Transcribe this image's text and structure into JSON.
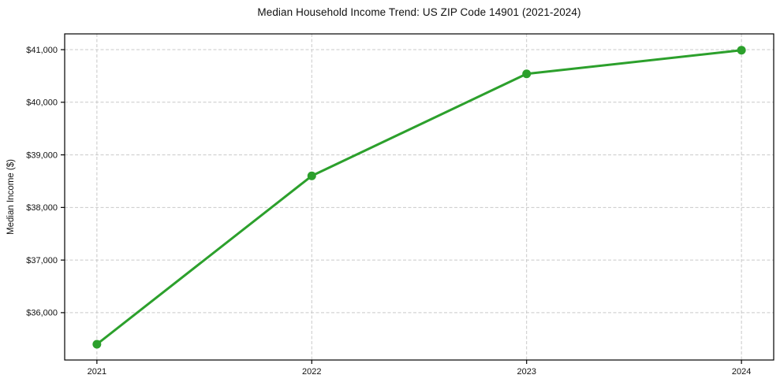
{
  "chart_data": {
    "type": "line",
    "title": "Median Household Income Trend: US ZIP Code 14901 (2021-2024)",
    "xlabel": "",
    "ylabel": "Median Income ($)",
    "x": [
      2021,
      2022,
      2023,
      2024
    ],
    "values": [
      35400,
      38600,
      40540,
      40990
    ],
    "x_tick_labels": [
      "2021",
      "2022",
      "2023",
      "2024"
    ],
    "y_ticks": [
      36000,
      37000,
      38000,
      39000,
      40000,
      41000
    ],
    "y_tick_labels": [
      "$36,000",
      "$37,000",
      "$38,000",
      "$39,000",
      "$40,000",
      "$41,000"
    ],
    "xlim": [
      2020.85,
      2024.15
    ],
    "ylim": [
      35100,
      41300
    ],
    "grid": true,
    "grid_style": "dashed",
    "legend": false,
    "line_color": "#2ca02c",
    "marker": "o",
    "marker_color": "#2ca02c",
    "grid_color": "#c9c9c9",
    "spine_color": "#000000",
    "background": "#ffffff",
    "tick_label_color": "#111111"
  }
}
